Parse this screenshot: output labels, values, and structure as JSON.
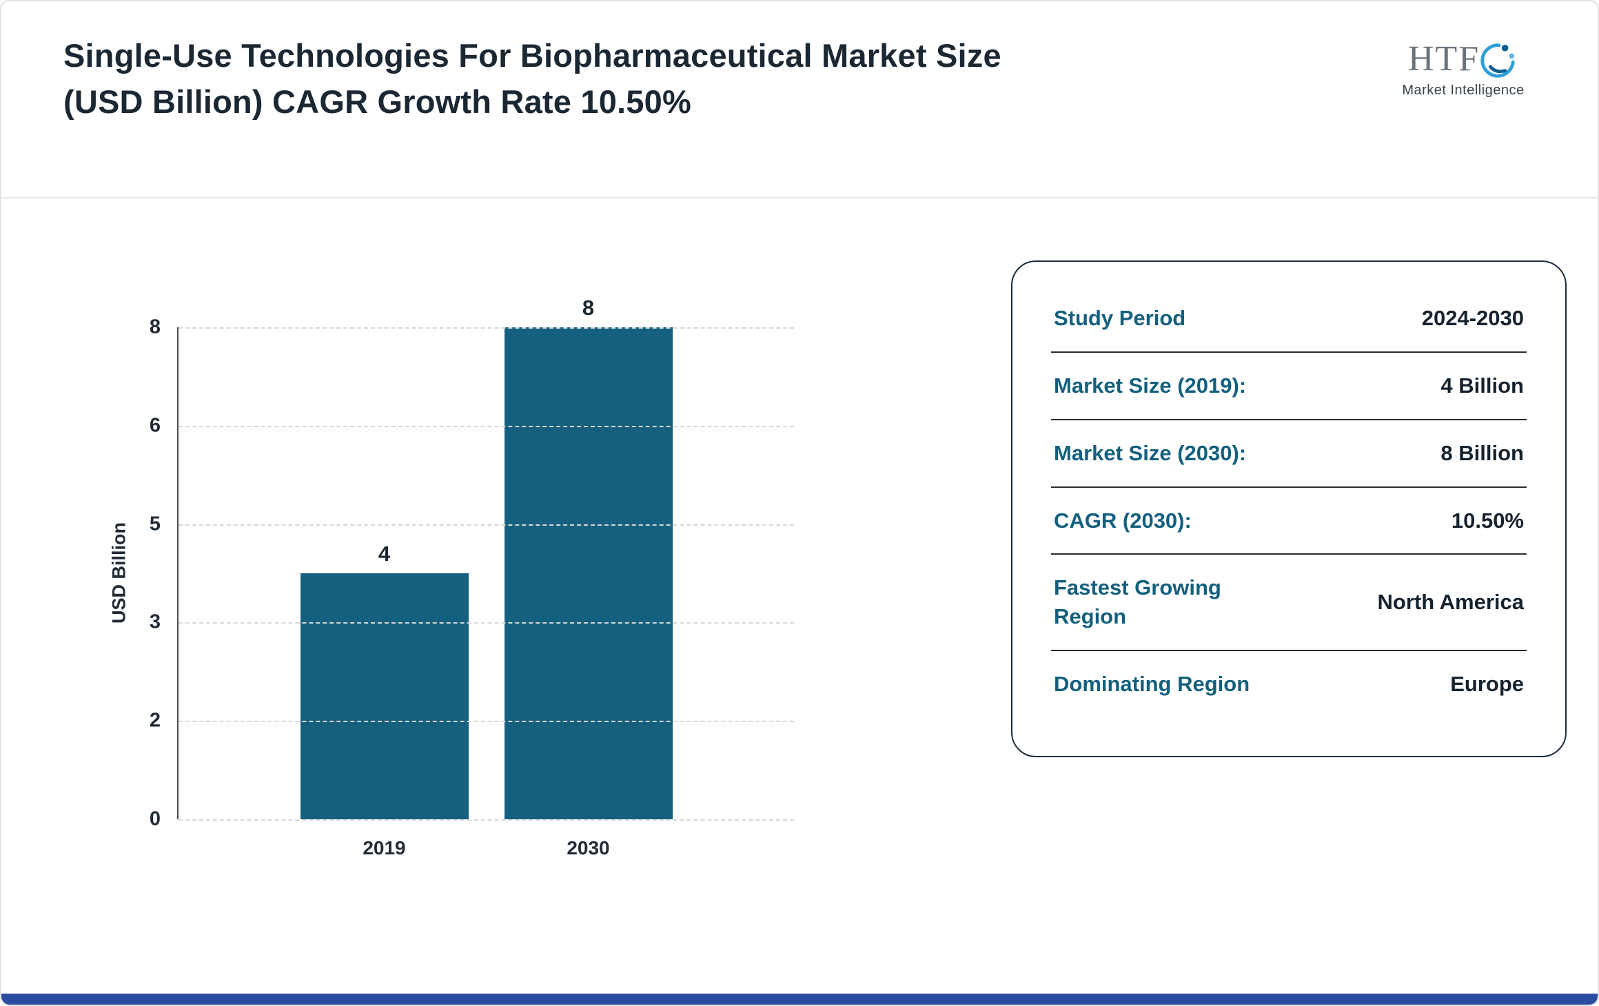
{
  "page": {
    "title": "Single-Use Technologies For Biopharmaceutical Market Size (USD Billion) CAGR Growth Rate 10.50%"
  },
  "logo": {
    "text": "HTF",
    "subtext": "Market Intelligence"
  },
  "chart_data": {
    "type": "bar",
    "title": "Single-Use Technologies For Biopharmaceutical Market Size (USD Billion)",
    "categories": [
      "2019",
      "2030"
    ],
    "values": [
      4,
      8
    ],
    "xlabel": "",
    "ylabel": "USD Billion",
    "ylim": [
      0,
      8
    ],
    "ytick_labels": [
      "0",
      "2",
      "3",
      "5",
      "6",
      "8"
    ],
    "grid": "horizontal-dashed",
    "legend": "none",
    "bar_color": "#15607e"
  },
  "summary_card": {
    "rows": [
      {
        "label": "Study Period",
        "value": "2024-2030"
      },
      {
        "label": "Market Size (2019):",
        "value": "4 Billion"
      },
      {
        "label": "Market Size (2030):",
        "value": "8 Billion"
      },
      {
        "label": "CAGR (2030):",
        "value": "10.50%"
      },
      {
        "label": "Fastest Growing Region",
        "value": "North America"
      },
      {
        "label": "Dominating Region",
        "value": "Europe"
      }
    ]
  },
  "colors": {
    "accent_teal": "#15607e",
    "title_text": "#1b2733",
    "bottom_bar": "#2b4da1",
    "card_border": "#1d2d3e"
  }
}
